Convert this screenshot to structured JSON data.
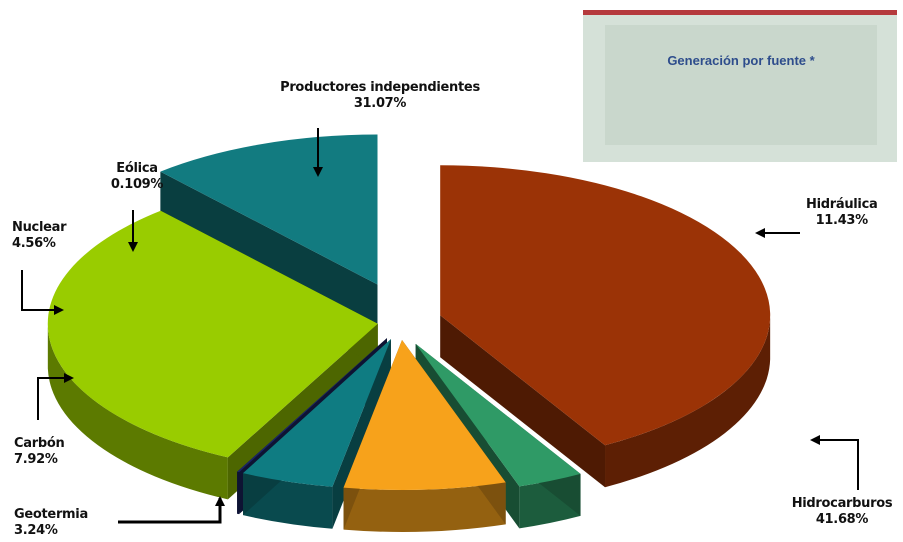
{
  "legend": {
    "title": "Generación por fuente *"
  },
  "chart_data": {
    "type": "pie",
    "title": "Generación por fuente *",
    "slices": [
      {
        "name": "Hidrocarburos",
        "value": 41.68,
        "label": "41.68%",
        "color": "#9b3306"
      },
      {
        "name": "Geotermia",
        "value": 3.24,
        "label": "3.24%",
        "color": "#2f9a66"
      },
      {
        "name": "Carbón",
        "value": 7.92,
        "label": "7.92%",
        "color": "#f7a21b"
      },
      {
        "name": "Nuclear",
        "value": 4.56,
        "label": "4.56%",
        "color": "#0f7c82"
      },
      {
        "name": "Eólica",
        "value": 0.109,
        "label": "0.109%",
        "color": "#1b2666"
      },
      {
        "name": "Productores independientes",
        "value": 31.07,
        "label": "31.07%",
        "color": "#99cc00"
      },
      {
        "name": "Hidráulica",
        "value": 11.43,
        "label": "11.43%",
        "color": "#127b80"
      }
    ],
    "labels": {
      "hidraulica": {
        "name": "Hidráulica",
        "pct": "11.43%"
      },
      "hidrocarburos": {
        "name": "Hidrocarburos",
        "pct": "41.68%"
      },
      "geotermia": {
        "name": "Geotermia",
        "pct": "3.24%"
      },
      "carbon": {
        "name": "Carbón",
        "pct": "7.92%"
      },
      "nuclear": {
        "name": "Nuclear",
        "pct": "4.56%"
      },
      "eolica": {
        "name": "Eólica",
        "pct": "0.109%"
      },
      "productores": {
        "name": "Productores independientes",
        "pct": "31.07%"
      }
    }
  }
}
